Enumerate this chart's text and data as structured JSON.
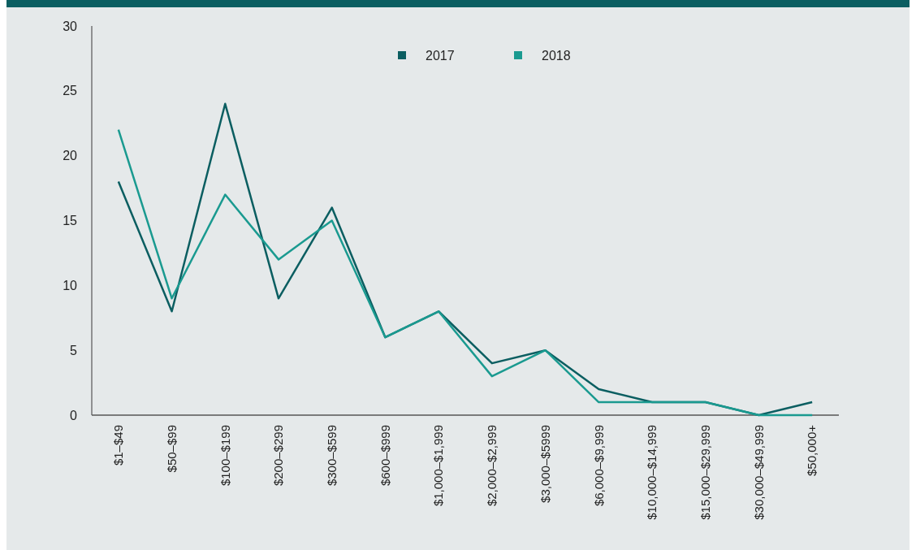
{
  "chart_data": {
    "type": "line",
    "categories": [
      "$1–$49",
      "$50–$99",
      "$100–$199",
      "$200–$299",
      "$300–$599",
      "$600–$999",
      "$1,000–$1,999",
      "$2,000–$2,999",
      "$3,000–$5999",
      "$6,000–$9,999",
      "$10,000–$14,999",
      "$15,000–$29,999",
      "$30,000–$49,999",
      "$50,000+"
    ],
    "series": [
      {
        "name": "2017",
        "color": "#0b5e61",
        "values": [
          18,
          8,
          24,
          9,
          16,
          6,
          8,
          4,
          5,
          2,
          1,
          1,
          0,
          1
        ]
      },
      {
        "name": "2018",
        "color": "#1a9a90",
        "values": [
          22,
          9,
          17,
          12,
          15,
          6,
          8,
          3,
          5,
          1,
          1,
          1,
          0,
          0
        ]
      }
    ],
    "ylim": [
      0,
      30
    ],
    "yticks": [
      0,
      5,
      10,
      15,
      20,
      25,
      30
    ],
    "grid": false,
    "legend": "top",
    "marker": "none"
  }
}
